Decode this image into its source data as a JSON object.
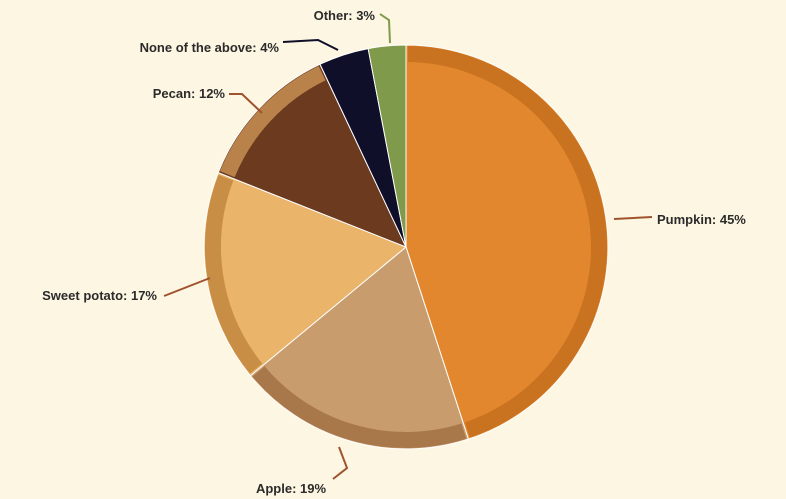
{
  "chart_data": {
    "type": "pie",
    "title": "",
    "slices": [
      {
        "label": "Pumpkin",
        "value": 45,
        "display": "Pumpkin: 45%",
        "color": "#e3872f",
        "crust": "#c9721f"
      },
      {
        "label": "Apple",
        "value": 19,
        "display": "Apple: 19%",
        "color": "#c99c6e",
        "crust": "#a8784b"
      },
      {
        "label": "Sweet potato",
        "value": 17,
        "display": "Sweet potato: 17%",
        "color": "#eab46b",
        "crust": "#c98e45"
      },
      {
        "label": "Pecan",
        "value": 12,
        "display": "Pecan: 12%",
        "color": "#6b3a1f",
        "crust": "#b9824a"
      },
      {
        "label": "None of the above",
        "value": 4,
        "display": "None of the above: 4%",
        "color": "#0f0f2a",
        "crust": "#0f0f2a"
      },
      {
        "label": "Other",
        "value": 3,
        "display": "Other: 3%",
        "color": "#7e9a4a",
        "crust": "#7e9a4a"
      }
    ],
    "leader_color": "#a0522d",
    "start_angle": "12 o'clock",
    "direction": "clockwise"
  }
}
